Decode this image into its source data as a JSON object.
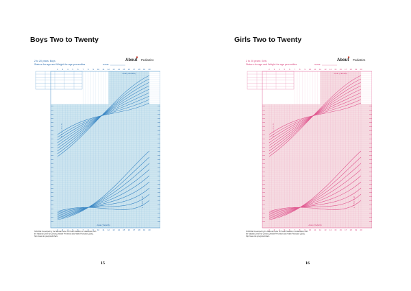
{
  "pages": [
    {
      "heading": "Boys Two to Twenty",
      "page_number": "15",
      "chart": {
        "header_line1": "2 to 20 years: Boys",
        "header_line2": "Stature-for-age and Weight-for-age percentiles",
        "name_label": "NAME",
        "logo_brand": "About",
        "logo_suffix": "Pediatrics",
        "upper_band_title": "AGE (YEARS)",
        "lower_band_title": "AGE (YEARS)",
        "stature_label": "STATURE",
        "weight_label": "WEIGHT",
        "source_note": "SOURCE: Developed by the National Center for Health Statistics in collaboration with",
        "source_note2": "the National Center for Chronic Disease Prevention and Health Promotion (2000).",
        "source_note3": "http://www.cdc.gov/growthcharts",
        "colors": {
          "line": "#3b87c4",
          "shade": "#cfe6f0",
          "text": "#2f6fb0"
        }
      }
    },
    {
      "heading": "Girls Two to Twenty",
      "page_number": "16",
      "chart": {
        "header_line1": "2 to 20 years: Girls",
        "header_line2": "Stature-for-age and Weight-for-age percentiles",
        "name_label": "NAME",
        "logo_brand": "About",
        "logo_suffix": "Pediatrics",
        "upper_band_title": "AGE (YEARS)",
        "lower_band_title": "AGE (YEARS)",
        "stature_label": "STATURE",
        "weight_label": "WEIGHT",
        "source_note": "SOURCE: Developed by the National Center for Health Statistics in collaboration with",
        "source_note2": "the National Center for Chronic Disease Prevention and Health Promotion (2000).",
        "source_note3": "http://www.cdc.gov/growthcharts",
        "colors": {
          "line": "#e0578f",
          "shade": "#f6dde3",
          "text": "#d9467f"
        }
      }
    }
  ],
  "age_ticks": [
    "2",
    "3",
    "4",
    "5",
    "6",
    "7",
    "8",
    "9",
    "10",
    "11",
    "12",
    "13",
    "14",
    "15",
    "16",
    "17",
    "18",
    "19",
    "20"
  ]
}
